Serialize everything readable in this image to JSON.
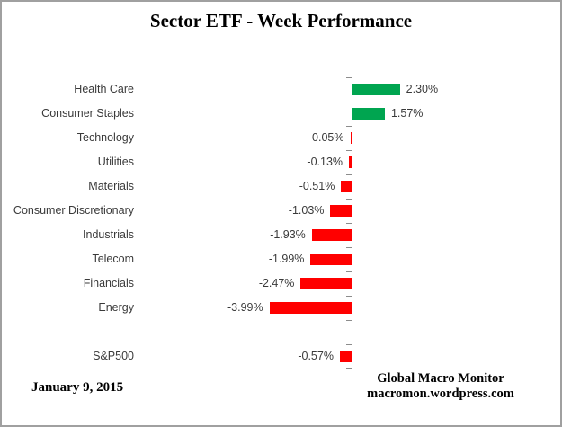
{
  "title": "Sector ETF - Week Performance",
  "footer": {
    "date": "January 9, 2015",
    "source_line1": "Global Macro Monitor",
    "source_line2": "macromon.wordpress.com"
  },
  "colors": {
    "positive": "#00A550",
    "negative": "#FF0000",
    "axis": "#8C8C8C"
  },
  "chart_data": {
    "type": "bar",
    "orientation": "horizontal",
    "title": "Sector ETF - Week Performance",
    "categories": [
      "Health Care",
      "Consumer Staples",
      "Technology",
      "Utilities",
      "Materials",
      "Consumer Discretionary",
      "Industrials",
      "Telecom",
      "Financials",
      "Energy",
      "",
      "S&P500"
    ],
    "values": [
      2.3,
      1.57,
      -0.05,
      -0.13,
      -0.51,
      -1.03,
      -1.93,
      -1.99,
      -2.47,
      -3.99,
      null,
      -0.57
    ],
    "value_labels": [
      "2.30%",
      "1.57%",
      "-0.05%",
      "-0.13%",
      "-0.51%",
      "-1.03%",
      "-1.93%",
      "-1.99%",
      "-2.47%",
      "-3.99%",
      "",
      "-0.57%"
    ],
    "xlabel": "",
    "ylabel": "",
    "xlim": [
      -4.5,
      3.0
    ],
    "grid": false,
    "legend": "none",
    "value_label_position": "outside-end",
    "positive_color": "#00A550",
    "negative_color": "#FF0000"
  }
}
